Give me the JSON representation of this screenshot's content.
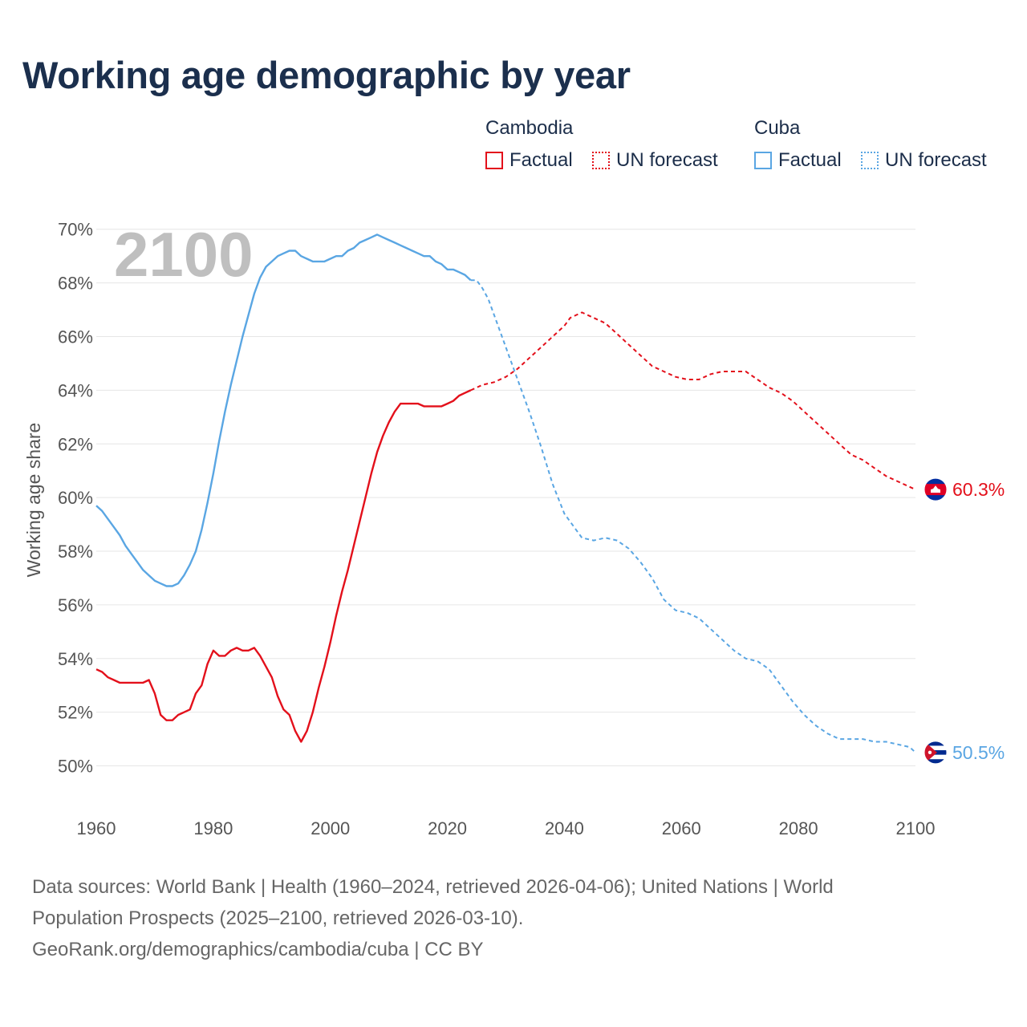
{
  "title": "Working age demographic by year",
  "legend": {
    "groups": [
      {
        "name": "Cambodia",
        "color": "#e3101b",
        "factual_label": "Factual",
        "forecast_label": "UN forecast"
      },
      {
        "name": "Cuba",
        "color": "#5aa6e3",
        "factual_label": "Factual",
        "forecast_label": "UN forecast"
      }
    ]
  },
  "footer": {
    "line1": "Data sources: World Bank | Health (1960–2024, retrieved 2026-04-06); United Nations | World",
    "line2": "Population Prospects (2025–2100, retrieved 2026-03-10).",
    "line3": "GeoRank.org/demographics/cambodia/cuba | CC BY"
  },
  "chart_data": {
    "type": "line",
    "title": "Working age demographic by year",
    "ylabel": "Working age share",
    "xlabel": "",
    "year_label": "2100",
    "xlim": [
      1960,
      2100
    ],
    "ylim": [
      49,
      70.5
    ],
    "x_ticks": [
      1960,
      1980,
      2000,
      2020,
      2040,
      2060,
      2080,
      2100
    ],
    "y_ticks": [
      50,
      52,
      54,
      56,
      58,
      60,
      62,
      64,
      66,
      68,
      70
    ],
    "y_tick_labels": [
      "50%",
      "52%",
      "54%",
      "56%",
      "58%",
      "60%",
      "62%",
      "64%",
      "66%",
      "68%",
      "70%"
    ],
    "factual_range": [
      1960,
      2024
    ],
    "forecast_range": [
      2024,
      2100
    ],
    "series": [
      {
        "name": "Cambodia",
        "color": "#e3101b",
        "end_label": "60.3%",
        "flag": "cambodia",
        "points": [
          [
            1960,
            53.6
          ],
          [
            1961,
            53.5
          ],
          [
            1962,
            53.3
          ],
          [
            1963,
            53.2
          ],
          [
            1964,
            53.1
          ],
          [
            1965,
            53.1
          ],
          [
            1966,
            53.1
          ],
          [
            1967,
            53.1
          ],
          [
            1968,
            53.1
          ],
          [
            1969,
            53.2
          ],
          [
            1970,
            52.7
          ],
          [
            1971,
            51.9
          ],
          [
            1972,
            51.7
          ],
          [
            1973,
            51.7
          ],
          [
            1974,
            51.9
          ],
          [
            1975,
            52.0
          ],
          [
            1976,
            52.1
          ],
          [
            1977,
            52.7
          ],
          [
            1978,
            53.0
          ],
          [
            1979,
            53.8
          ],
          [
            1980,
            54.3
          ],
          [
            1981,
            54.1
          ],
          [
            1982,
            54.1
          ],
          [
            1983,
            54.3
          ],
          [
            1984,
            54.4
          ],
          [
            1985,
            54.3
          ],
          [
            1986,
            54.3
          ],
          [
            1987,
            54.4
          ],
          [
            1988,
            54.1
          ],
          [
            1989,
            53.7
          ],
          [
            1990,
            53.3
          ],
          [
            1991,
            52.6
          ],
          [
            1992,
            52.1
          ],
          [
            1993,
            51.9
          ],
          [
            1994,
            51.3
          ],
          [
            1995,
            50.9
          ],
          [
            1996,
            51.3
          ],
          [
            1997,
            52.0
          ],
          [
            1998,
            52.9
          ],
          [
            1999,
            53.7
          ],
          [
            2000,
            54.6
          ],
          [
            2001,
            55.6
          ],
          [
            2002,
            56.5
          ],
          [
            2003,
            57.3
          ],
          [
            2004,
            58.2
          ],
          [
            2005,
            59.1
          ],
          [
            2006,
            60.0
          ],
          [
            2007,
            60.9
          ],
          [
            2008,
            61.7
          ],
          [
            2009,
            62.3
          ],
          [
            2010,
            62.8
          ],
          [
            2011,
            63.2
          ],
          [
            2012,
            63.5
          ],
          [
            2013,
            63.5
          ],
          [
            2014,
            63.5
          ],
          [
            2015,
            63.5
          ],
          [
            2016,
            63.4
          ],
          [
            2017,
            63.4
          ],
          [
            2018,
            63.4
          ],
          [
            2019,
            63.4
          ],
          [
            2020,
            63.5
          ],
          [
            2021,
            63.6
          ],
          [
            2022,
            63.8
          ],
          [
            2023,
            63.9
          ],
          [
            2024,
            64.0
          ],
          [
            2026,
            64.2
          ],
          [
            2028,
            64.3
          ],
          [
            2030,
            64.5
          ],
          [
            2032,
            64.8
          ],
          [
            2034,
            65.2
          ],
          [
            2036,
            65.6
          ],
          [
            2038,
            66.0
          ],
          [
            2040,
            66.4
          ],
          [
            2041,
            66.7
          ],
          [
            2043,
            66.9
          ],
          [
            2045,
            66.7
          ],
          [
            2047,
            66.5
          ],
          [
            2049,
            66.1
          ],
          [
            2051,
            65.7
          ],
          [
            2053,
            65.3
          ],
          [
            2055,
            64.9
          ],
          [
            2057,
            64.7
          ],
          [
            2059,
            64.5
          ],
          [
            2061,
            64.4
          ],
          [
            2063,
            64.4
          ],
          [
            2065,
            64.6
          ],
          [
            2067,
            64.7
          ],
          [
            2069,
            64.7
          ],
          [
            2071,
            64.7
          ],
          [
            2073,
            64.4
          ],
          [
            2075,
            64.1
          ],
          [
            2077,
            63.9
          ],
          [
            2079,
            63.6
          ],
          [
            2081,
            63.2
          ],
          [
            2083,
            62.8
          ],
          [
            2085,
            62.4
          ],
          [
            2087,
            62.0
          ],
          [
            2089,
            61.6
          ],
          [
            2091,
            61.4
          ],
          [
            2093,
            61.1
          ],
          [
            2095,
            60.8
          ],
          [
            2097,
            60.6
          ],
          [
            2099,
            60.4
          ],
          [
            2100,
            60.3
          ]
        ]
      },
      {
        "name": "Cuba",
        "color": "#5aa6e3",
        "end_label": "50.5%",
        "flag": "cuba",
        "points": [
          [
            1960,
            59.7
          ],
          [
            1961,
            59.5
          ],
          [
            1962,
            59.2
          ],
          [
            1963,
            58.9
          ],
          [
            1964,
            58.6
          ],
          [
            1965,
            58.2
          ],
          [
            1966,
            57.9
          ],
          [
            1967,
            57.6
          ],
          [
            1968,
            57.3
          ],
          [
            1969,
            57.1
          ],
          [
            1970,
            56.9
          ],
          [
            1971,
            56.8
          ],
          [
            1972,
            56.7
          ],
          [
            1973,
            56.7
          ],
          [
            1974,
            56.8
          ],
          [
            1975,
            57.1
          ],
          [
            1976,
            57.5
          ],
          [
            1977,
            58.0
          ],
          [
            1978,
            58.8
          ],
          [
            1979,
            59.8
          ],
          [
            1980,
            60.9
          ],
          [
            1981,
            62.1
          ],
          [
            1982,
            63.2
          ],
          [
            1983,
            64.2
          ],
          [
            1984,
            65.1
          ],
          [
            1985,
            66.0
          ],
          [
            1986,
            66.8
          ],
          [
            1987,
            67.6
          ],
          [
            1988,
            68.2
          ],
          [
            1989,
            68.6
          ],
          [
            1990,
            68.8
          ],
          [
            1991,
            69.0
          ],
          [
            1992,
            69.1
          ],
          [
            1993,
            69.2
          ],
          [
            1994,
            69.2
          ],
          [
            1995,
            69.0
          ],
          [
            1996,
            68.9
          ],
          [
            1997,
            68.8
          ],
          [
            1998,
            68.8
          ],
          [
            1999,
            68.8
          ],
          [
            2000,
            68.9
          ],
          [
            2001,
            69.0
          ],
          [
            2002,
            69.0
          ],
          [
            2003,
            69.2
          ],
          [
            2004,
            69.3
          ],
          [
            2005,
            69.5
          ],
          [
            2006,
            69.6
          ],
          [
            2007,
            69.7
          ],
          [
            2008,
            69.8
          ],
          [
            2009,
            69.7
          ],
          [
            2010,
            69.6
          ],
          [
            2011,
            69.5
          ],
          [
            2012,
            69.4
          ],
          [
            2013,
            69.3
          ],
          [
            2014,
            69.2
          ],
          [
            2015,
            69.1
          ],
          [
            2016,
            69.0
          ],
          [
            2017,
            69.0
          ],
          [
            2018,
            68.8
          ],
          [
            2019,
            68.7
          ],
          [
            2020,
            68.5
          ],
          [
            2021,
            68.5
          ],
          [
            2022,
            68.4
          ],
          [
            2023,
            68.3
          ],
          [
            2024,
            68.1
          ],
          [
            2025,
            68.1
          ],
          [
            2026,
            67.8
          ],
          [
            2027,
            67.4
          ],
          [
            2028,
            66.8
          ],
          [
            2029,
            66.2
          ],
          [
            2030,
            65.6
          ],
          [
            2032,
            64.4
          ],
          [
            2034,
            63.2
          ],
          [
            2036,
            61.9
          ],
          [
            2038,
            60.5
          ],
          [
            2040,
            59.4
          ],
          [
            2042,
            58.8
          ],
          [
            2043,
            58.5
          ],
          [
            2045,
            58.4
          ],
          [
            2047,
            58.5
          ],
          [
            2049,
            58.4
          ],
          [
            2051,
            58.1
          ],
          [
            2053,
            57.6
          ],
          [
            2055,
            57.0
          ],
          [
            2057,
            56.2
          ],
          [
            2059,
            55.8
          ],
          [
            2061,
            55.7
          ],
          [
            2063,
            55.5
          ],
          [
            2065,
            55.1
          ],
          [
            2067,
            54.7
          ],
          [
            2069,
            54.3
          ],
          [
            2071,
            54.0
          ],
          [
            2073,
            53.9
          ],
          [
            2075,
            53.6
          ],
          [
            2077,
            53.0
          ],
          [
            2079,
            52.4
          ],
          [
            2081,
            51.9
          ],
          [
            2083,
            51.5
          ],
          [
            2085,
            51.2
          ],
          [
            2087,
            51.0
          ],
          [
            2089,
            51.0
          ],
          [
            2091,
            51.0
          ],
          [
            2093,
            50.9
          ],
          [
            2095,
            50.9
          ],
          [
            2097,
            50.8
          ],
          [
            2099,
            50.7
          ],
          [
            2100,
            50.5
          ]
        ]
      }
    ]
  }
}
